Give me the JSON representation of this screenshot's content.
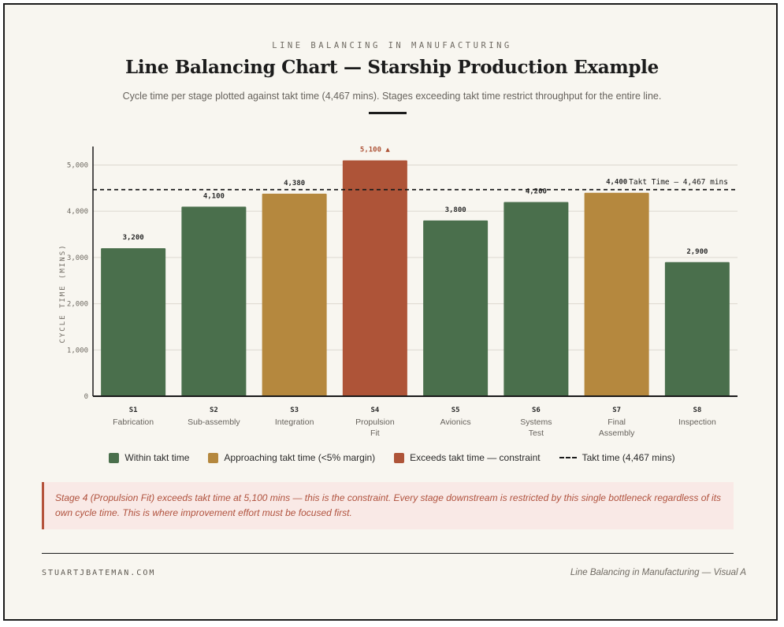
{
  "header": {
    "eyebrow": "LINE BALANCING IN MANUFACTURING",
    "title": "Line Balancing Chart — Starship Production Example",
    "subtitle": "Cycle time per stage plotted against takt time (4,467 mins). Stages exceeding takt time restrict throughput for the entire line."
  },
  "chart_data": {
    "type": "bar",
    "title": "Line Balancing Chart — Starship Production Example",
    "ylabel": "CYCLE TIME (MINS)",
    "xlabel": "",
    "ylim": [
      0,
      5400
    ],
    "yticks": [
      0,
      1000,
      2000,
      3000,
      4000,
      5000
    ],
    "ytick_labels": [
      "0",
      "1,000",
      "2,000",
      "3,000",
      "4,000",
      "5,000"
    ],
    "grid": true,
    "categories": [
      "S1",
      "S2",
      "S3",
      "S4",
      "S5",
      "S6",
      "S7",
      "S8"
    ],
    "category_names": [
      [
        "Fabrication"
      ],
      [
        "Sub-assembly"
      ],
      [
        "Integration"
      ],
      [
        "Propulsion",
        "Fit"
      ],
      [
        "Avionics"
      ],
      [
        "Systems",
        "Test"
      ],
      [
        "Final",
        "Assembly"
      ],
      [
        "Inspection"
      ]
    ],
    "values": [
      3200,
      4100,
      4380,
      5100,
      3800,
      4200,
      4400,
      2900
    ],
    "value_labels": [
      "3,200",
      "4,100",
      "4,380",
      "5,100 ▲",
      "3,800",
      "4,200",
      "4,400",
      "2,900"
    ],
    "status": [
      "within",
      "within",
      "approaching",
      "exceeds",
      "within",
      "within",
      "approaching",
      "within"
    ],
    "takt_time": 4467,
    "takt_label": "Takt Time — 4,467 mins",
    "legend_position": "bottom",
    "colors": {
      "within": "#4a6f4c",
      "approaching": "#b5883e",
      "exceeds": "#ae5438",
      "takt": "#1a1a1a"
    }
  },
  "legend": {
    "within": "Within takt time",
    "approaching": "Approaching takt time (<5% margin)",
    "exceeds": "Exceeds takt time — constraint",
    "takt": "Takt time (4,467 mins)"
  },
  "callout": {
    "text": "Stage 4 (Propulsion Fit) exceeds takt time at 5,100 mins — this is the constraint. Every stage downstream is restricted by this single bottleneck regardless of its own cycle time. This is where improvement effort must be focused first."
  },
  "footer": {
    "left": "STUARTJBATEMAN.COM",
    "right": "Line Balancing in Manufacturing — Visual A"
  }
}
